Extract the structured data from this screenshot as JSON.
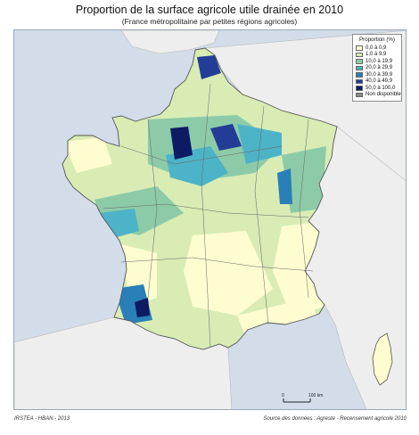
{
  "map": {
    "title": "Proportion de la surface agricole utile drainée en 2010",
    "subtitle": "(France métropolitaine par petites régions agricoles)",
    "sea_color": "#d2dde9",
    "neighbor_color": "#eeeeee",
    "border_color": "#555555"
  },
  "legend": {
    "title": "Proportion (%)",
    "items": [
      {
        "label": "0,0 à 0,9",
        "color": "#fefdcf"
      },
      {
        "label": "1,0 à 9,9",
        "color": "#d8ecb4"
      },
      {
        "label": "10,0 à 19,9",
        "color": "#8dcba8"
      },
      {
        "label": "20,0 à 29,9",
        "color": "#4db3c6"
      },
      {
        "label": "30,0 à 39,9",
        "color": "#2a7fb8"
      },
      {
        "label": "40,0 à 49,9",
        "color": "#233d97"
      },
      {
        "label": "50,0 à 100,0",
        "color": "#0c1b63"
      },
      {
        "label": "Non disponible",
        "color": "#8a8a8a"
      }
    ]
  },
  "scale_bar": {
    "start_label": "0",
    "end_label": "100 km"
  },
  "credits": {
    "left": "IRSTEA - HBAN - 2013",
    "right": "Source des données : Agreste - Recensement agricole 2010"
  }
}
